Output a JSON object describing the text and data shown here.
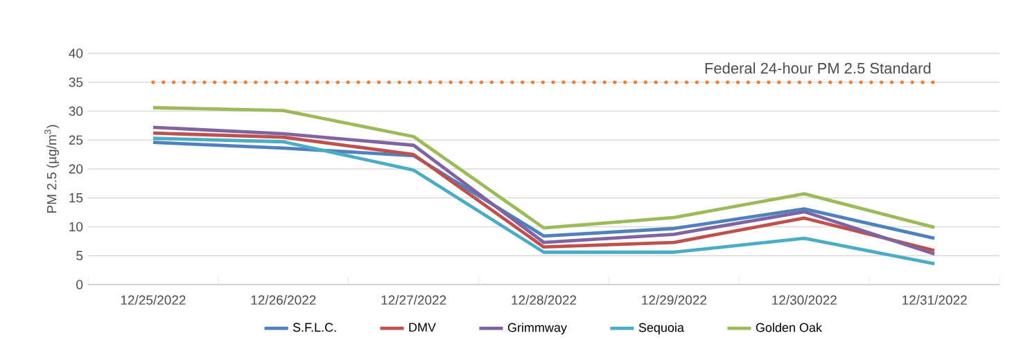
{
  "chart_data": {
    "type": "line",
    "ylabel": "PM 2.5 (µg/m$^{3}$)",
    "categories": [
      "12/25/2022",
      "12/26/2022",
      "12/27/2022",
      "12/28/2022",
      "12/29/2022",
      "12/30/2022",
      "12/31/2022"
    ],
    "series": [
      {
        "name": "S.F.L.C.",
        "color": "#4f81bd",
        "values": [
          24.6,
          23.6,
          22.3,
          8.4,
          9.7,
          13.1,
          8.0
        ]
      },
      {
        "name": "DMV",
        "color": "#c0504d",
        "values": [
          26.2,
          25.5,
          22.5,
          6.5,
          7.3,
          11.5,
          5.9
        ]
      },
      {
        "name": "Grimmway",
        "color": "#8064a2",
        "values": [
          27.2,
          26.1,
          24.1,
          7.3,
          8.7,
          12.6,
          5.3
        ]
      },
      {
        "name": "Sequoia",
        "color": "#4bacc6",
        "values": [
          25.3,
          24.7,
          19.8,
          5.6,
          5.6,
          8.0,
          3.6
        ]
      },
      {
        "name": "Golden Oak",
        "color": "#9bbb59",
        "values": [
          30.6,
          30.1,
          25.6,
          9.8,
          11.6,
          15.7,
          9.9
        ]
      }
    ],
    "ylim": [
      0,
      40
    ],
    "yticks": [
      0,
      5,
      10,
      15,
      20,
      25,
      30,
      35,
      40
    ],
    "grid": "y",
    "legend": "bottom",
    "marker": "none",
    "line_style": "solid",
    "ref_lines": [
      {
        "axis": "y",
        "value": 35,
        "label": "Federal 24-hour PM 2.5 Standard",
        "color": "#ed7d31",
        "line_style": "dotted"
      }
    ]
  }
}
